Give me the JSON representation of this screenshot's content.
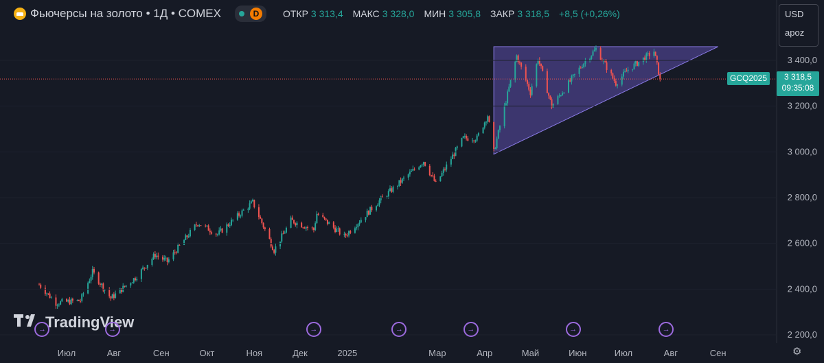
{
  "header": {
    "instrument": "Фьючерсы на золото • 1Д • COMEX",
    "interval_badge": "D",
    "open_label": "ОТКР",
    "open_value": "3 313,4",
    "high_label": "МАКС",
    "high_value": "3 328,0",
    "low_label": "МИН",
    "low_value": "3 305,8",
    "close_label": "ЗАКР",
    "close_value": "3 318,5",
    "change_value": "+8,5 (+0,26%)"
  },
  "currency_menu": {
    "currency": "USD",
    "scale": "apoz"
  },
  "price_tag": {
    "symbol": "GCQ2025",
    "price": "3 318,5",
    "countdown": "09:35:08"
  },
  "watermark": "TradingView",
  "colors": {
    "up": "#26a69a",
    "down": "#ef5350",
    "background": "#161a25",
    "pattern_fill": "#6a58c8",
    "event_icon": "#9c6ade"
  },
  "icons": [
    "gold-coin-icon",
    "event-arrow-icon",
    "settings-gear-icon",
    "tradingview-logo-icon"
  ],
  "chart_data": {
    "type": "candlestick",
    "y_ticks": [
      "3 400,0",
      "3 200,0",
      "3 000,0",
      "2 800,0",
      "2 600,0",
      "2 400,0",
      "2 200,0"
    ],
    "y_tick_values": [
      3400,
      3200,
      3000,
      2800,
      2600,
      2400,
      2200
    ],
    "ylim": [
      2175,
      3545
    ],
    "x_ticks": [
      "Июл",
      "Авг",
      "Сен",
      "Окт",
      "Ноя",
      "Дек",
      "2025",
      "Мар",
      "Апр",
      "Май",
      "Июн",
      "Июл",
      "Авг",
      "Сен"
    ],
    "x_tick_dates": [
      "2024-07-01",
      "2024-08-01",
      "2024-09-01",
      "2024-10-01",
      "2024-11-01",
      "2024-12-01",
      "2025-01-01",
      "2025-03-01",
      "2025-04-01",
      "2025-05-01",
      "2025-06-01",
      "2025-07-01",
      "2025-08-01",
      "2025-09-01"
    ],
    "series_date_range": [
      "2024-06-13",
      "2025-07-25"
    ],
    "close_anchors": [
      [
        "2024-06-13",
        2420
      ],
      [
        "2024-06-24",
        2340
      ],
      [
        "2024-07-10",
        2350
      ],
      [
        "2024-07-18",
        2475
      ],
      [
        "2024-07-30",
        2360
      ],
      [
        "2024-08-15",
        2450
      ],
      [
        "2024-08-28",
        2550
      ],
      [
        "2024-09-05",
        2520
      ],
      [
        "2024-09-25",
        2690
      ],
      [
        "2024-10-08",
        2640
      ],
      [
        "2024-10-31",
        2780
      ],
      [
        "2024-11-14",
        2570
      ],
      [
        "2024-11-25",
        2700
      ],
      [
        "2024-12-10",
        2660
      ],
      [
        "2024-12-12",
        2730
      ],
      [
        "2024-12-30",
        2630
      ],
      [
        "2025-01-21",
        2780
      ],
      [
        "2025-02-20",
        2960
      ],
      [
        "2025-02-28",
        2860
      ],
      [
        "2025-03-18",
        3060
      ],
      [
        "2025-03-27",
        3060
      ],
      [
        "2025-04-03",
        3160
      ],
      [
        "2025-04-07",
        3000
      ],
      [
        "2025-04-22",
        3420
      ],
      [
        "2025-05-01",
        3260
      ],
      [
        "2025-05-06",
        3410
      ],
      [
        "2025-05-15",
        3200
      ],
      [
        "2025-06-05",
        3390
      ],
      [
        "2025-06-13",
        3450
      ],
      [
        "2025-06-26",
        3300
      ],
      [
        "2025-07-04",
        3360
      ],
      [
        "2025-07-21",
        3440
      ],
      [
        "2025-07-25",
        3318.5
      ]
    ],
    "last_price": 3318.5,
    "triangle_pattern": {
      "upper_left": [
        "2025-04-07",
        3460
      ],
      "upper_right": [
        "2025-09-01",
        3460
      ],
      "lower_left": [
        "2025-04-07",
        2990
      ],
      "apex": [
        "2025-09-01",
        3460
      ]
    },
    "event_marker_dates": [
      "2024-06-15",
      "2024-07-31",
      "2024-12-10",
      "2025-02-04",
      "2025-03-23",
      "2025-05-29",
      "2025-07-29"
    ]
  }
}
